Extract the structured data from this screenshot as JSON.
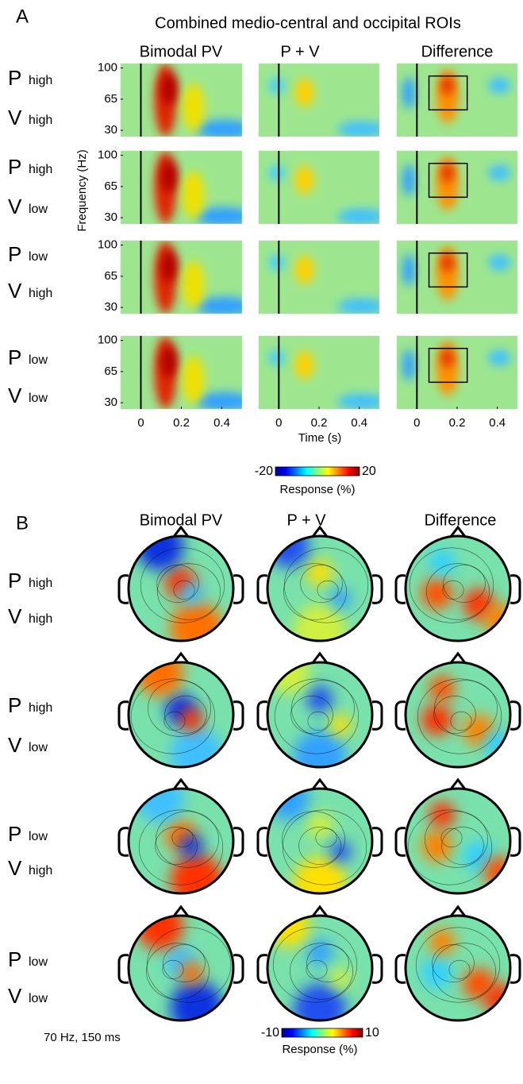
{
  "panel_a": {
    "label": "A",
    "title": "Combined medio-central and occipital ROIs",
    "columns": [
      "Bimodal PV",
      "P + V",
      "Difference"
    ],
    "rows": [
      {
        "p": "P",
        "p_level": "high",
        "v": "V",
        "v_level": "high"
      },
      {
        "p": "P",
        "p_level": "high",
        "v": "V",
        "v_level": "low"
      },
      {
        "p": "P",
        "p_level": "low",
        "v": "V",
        "v_level": "high"
      },
      {
        "p": "P",
        "p_level": "low",
        "v": "V",
        "v_level": "low"
      }
    ],
    "y_label": "Frequency (Hz)",
    "x_label": "Time (s)",
    "xlim": [
      -0.1,
      0.5
    ],
    "xticks": [
      0,
      0.2,
      0.4
    ],
    "ylim": [
      23,
      105
    ],
    "yticks": [
      30,
      65,
      100
    ],
    "onset_time": 0,
    "roi_box": {
      "time": [
        0.06,
        0.25
      ],
      "freq": [
        53,
        91
      ]
    },
    "colorbar": {
      "clim": [
        -20,
        20
      ],
      "ticks": [
        -20,
        20
      ],
      "label": "Response (%)"
    }
  },
  "panel_b": {
    "label": "B",
    "columns": [
      "Bimodal PV",
      "P + V",
      "Difference"
    ],
    "rows": [
      {
        "p": "P",
        "p_level": "high",
        "v": "V",
        "v_level": "high"
      },
      {
        "p": "P",
        "p_level": "high",
        "v": "V",
        "v_level": "low"
      },
      {
        "p": "P",
        "p_level": "low",
        "v": "V",
        "v_level": "high"
      },
      {
        "p": "P",
        "p_level": "low",
        "v": "V",
        "v_level": "low"
      }
    ],
    "note": "70 Hz, 150 ms",
    "colorbar": {
      "clim": [
        -10,
        10
      ],
      "ticks": [
        -10,
        10
      ],
      "label": "Response (%)"
    }
  }
}
